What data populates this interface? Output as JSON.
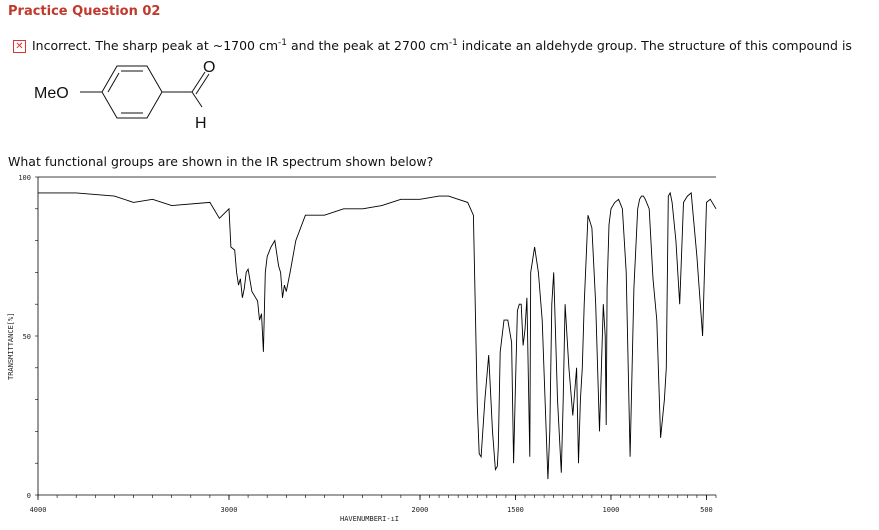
{
  "header": {
    "title": "Practice Question 02"
  },
  "feedback": {
    "icon": "incorrect-x-icon",
    "status_color": "#d33",
    "part1": "Incorrect. The sharp peak at ~1700 cm",
    "sup1": "-1",
    "part2": " and the peak at 2700 cm",
    "sup2": "-1",
    "part3": " indicate an aldehyde group. The structure of this compound is"
  },
  "structure": {
    "substituent": "MeO",
    "oxygen": "O",
    "hydrogen": "H"
  },
  "question": {
    "text": "What functional groups are shown in the IR spectrum shown below?"
  },
  "chart_data": {
    "type": "line",
    "title": "",
    "xlabel": "HAVENUMBERI-ıI",
    "ylabel": "TRANSMITTANCE[%]",
    "xlim": [
      4000,
      450
    ],
    "ylim": [
      0,
      100
    ],
    "xticks": [
      4000,
      3000,
      2000,
      1500,
      1000,
      500
    ],
    "yticks": [
      0,
      50,
      100
    ],
    "series": [
      {
        "line_color": "#000000",
        "x": [
          4000,
          3800,
          3600,
          3500,
          3400,
          3300,
          3100,
          3050,
          3000,
          2990,
          2970,
          2960,
          2950,
          2940,
          2930,
          2920,
          2910,
          2900,
          2880,
          2860,
          2850,
          2840,
          2830,
          2820,
          2810,
          2800,
          2780,
          2760,
          2740,
          2730,
          2720,
          2710,
          2700,
          2680,
          2650,
          2600,
          2500,
          2400,
          2300,
          2200,
          2100,
          2000,
          1900,
          1850,
          1800,
          1750,
          1720,
          1700,
          1690,
          1680,
          1660,
          1640,
          1620,
          1605,
          1595,
          1590,
          1580,
          1560,
          1540,
          1520,
          1510,
          1500,
          1490,
          1480,
          1470,
          1460,
          1450,
          1440,
          1425,
          1420,
          1400,
          1380,
          1360,
          1330,
          1320,
          1310,
          1300,
          1280,
          1260,
          1250,
          1240,
          1220,
          1200,
          1180,
          1170,
          1160,
          1150,
          1140,
          1120,
          1100,
          1080,
          1060,
          1040,
          1030,
          1025,
          1020,
          1010,
          1000,
          980,
          960,
          940,
          920,
          900,
          880,
          860,
          850,
          840,
          830,
          820,
          800,
          780,
          760,
          740,
          720,
          710,
          700,
          690,
          680,
          660,
          640,
          620,
          600,
          580,
          550,
          520,
          500,
          480,
          450
        ],
        "y": [
          95,
          95,
          94,
          92,
          93,
          91,
          92,
          87,
          90,
          78,
          77,
          70,
          66,
          68,
          62,
          65,
          70,
          71,
          64,
          62,
          61,
          55,
          57,
          45,
          70,
          75,
          78,
          80,
          72,
          70,
          62,
          66,
          64,
          70,
          80,
          88,
          88,
          90,
          90,
          91,
          93,
          93,
          94,
          94,
          93,
          92,
          88,
          28,
          13,
          12,
          30,
          44,
          20,
          8,
          9,
          15,
          45,
          55,
          55,
          48,
          10,
          35,
          58,
          60,
          60,
          47,
          52,
          62,
          12,
          70,
          78,
          70,
          55,
          5,
          20,
          60,
          70,
          30,
          7,
          30,
          60,
          40,
          25,
          40,
          10,
          30,
          40,
          60,
          88,
          84,
          60,
          20,
          60,
          50,
          22,
          65,
          85,
          90,
          92,
          93,
          90,
          70,
          12,
          65,
          90,
          93,
          94,
          94,
          93,
          90,
          68,
          55,
          18,
          30,
          40,
          94,
          95,
          92,
          80,
          60,
          92,
          94,
          95,
          75,
          50,
          92,
          93,
          90
        ]
      }
    ]
  }
}
